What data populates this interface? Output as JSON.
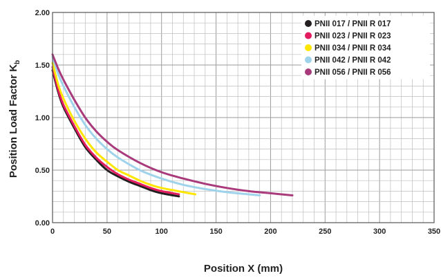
{
  "chart_data": {
    "type": "line",
    "xlabel": "Position X (mm)",
    "ylabel_main": "Position Load Factor K",
    "ylabel_sub": "b",
    "xlim": [
      0,
      350
    ],
    "ylim": [
      0,
      2.0
    ],
    "x_ticks": [
      0,
      50,
      100,
      150,
      200,
      250,
      300,
      350
    ],
    "x_tick_labels": [
      "0",
      "50",
      "100",
      "150",
      "200",
      "250",
      "300",
      "350"
    ],
    "y_ticks": [
      0,
      0.5,
      1.0,
      1.5,
      2.0
    ],
    "y_tick_labels": [
      "0.00",
      "0.50",
      "1.00",
      "1.50",
      "2.00"
    ],
    "x_minor_step": 10,
    "y_minor_step": 0.1,
    "grid": true,
    "legend_position": "top-right",
    "series": [
      {
        "name": "PNII 017 / PNII R 017",
        "color": "#231f20",
        "x": [
          0,
          5,
          10,
          20,
          30,
          40,
          50,
          60,
          70,
          80,
          90,
          100,
          116
        ],
        "y": [
          1.45,
          1.25,
          1.1,
          0.9,
          0.72,
          0.6,
          0.5,
          0.44,
          0.39,
          0.35,
          0.31,
          0.28,
          0.25
        ]
      },
      {
        "name": "PNII 023 / PNII R 023",
        "color": "#e31c5f",
        "x": [
          0,
          5,
          10,
          20,
          30,
          40,
          50,
          60,
          70,
          80,
          90,
          100,
          116
        ],
        "y": [
          1.48,
          1.27,
          1.12,
          0.92,
          0.74,
          0.62,
          0.53,
          0.46,
          0.41,
          0.37,
          0.33,
          0.3,
          0.27
        ]
      },
      {
        "name": "PNII 034 / PNII R 034",
        "color": "#ffe600",
        "x": [
          0,
          5,
          10,
          20,
          30,
          40,
          50,
          60,
          70,
          80,
          90,
          100,
          110,
          120,
          131
        ],
        "y": [
          1.52,
          1.32,
          1.18,
          0.97,
          0.8,
          0.67,
          0.58,
          0.5,
          0.45,
          0.4,
          0.36,
          0.33,
          0.31,
          0.29,
          0.27
        ]
      },
      {
        "name": "PNII 042 / PNII R 042",
        "color": "#9fd3ec",
        "x": [
          0,
          5,
          10,
          20,
          30,
          40,
          50,
          60,
          80,
          100,
          120,
          140,
          160,
          180,
          190
        ],
        "y": [
          1.58,
          1.42,
          1.3,
          1.1,
          0.93,
          0.8,
          0.7,
          0.62,
          0.5,
          0.42,
          0.36,
          0.32,
          0.29,
          0.27,
          0.26
        ]
      },
      {
        "name": "PNII 056 / PNII R 056",
        "color": "#a93a7b",
        "x": [
          0,
          5,
          10,
          20,
          30,
          40,
          50,
          60,
          80,
          100,
          120,
          140,
          160,
          180,
          200,
          220
        ],
        "y": [
          1.6,
          1.47,
          1.36,
          1.17,
          1.0,
          0.87,
          0.77,
          0.69,
          0.57,
          0.48,
          0.42,
          0.37,
          0.33,
          0.3,
          0.28,
          0.26
        ]
      }
    ]
  }
}
